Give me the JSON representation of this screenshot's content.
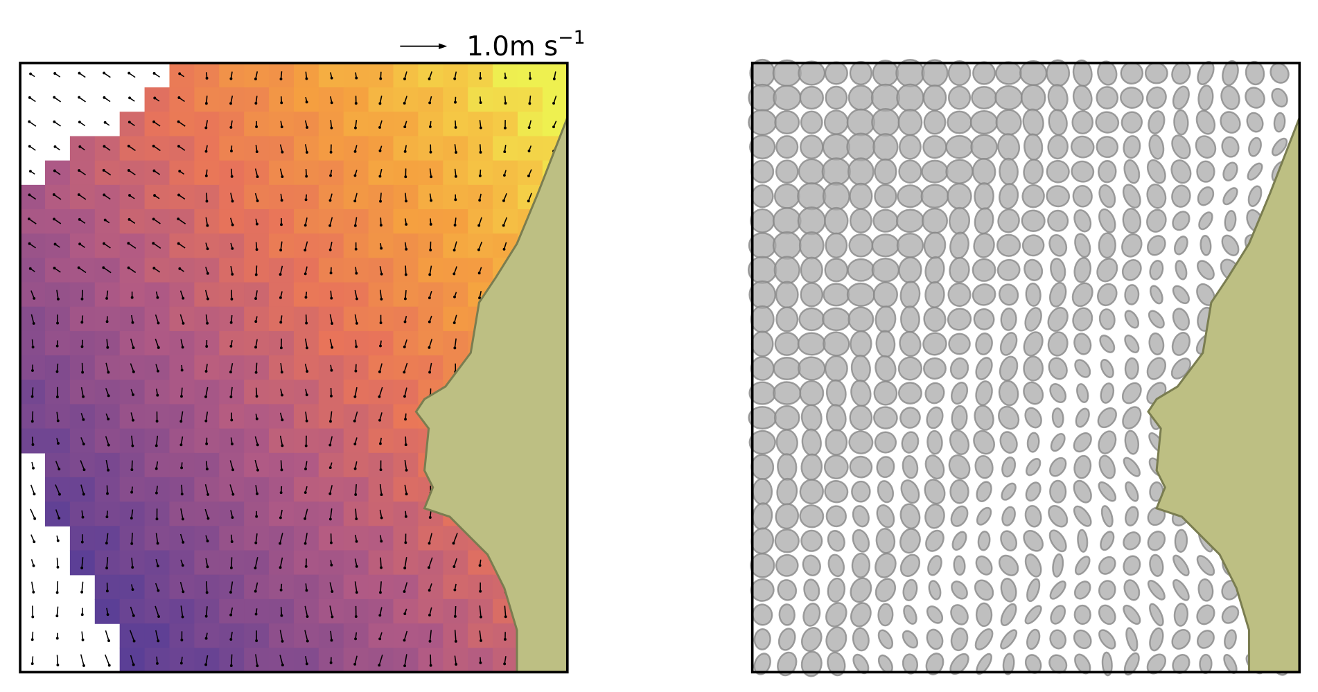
{
  "quiver_key": {
    "label": "1.0m s",
    "exponent": "−1"
  }
}
